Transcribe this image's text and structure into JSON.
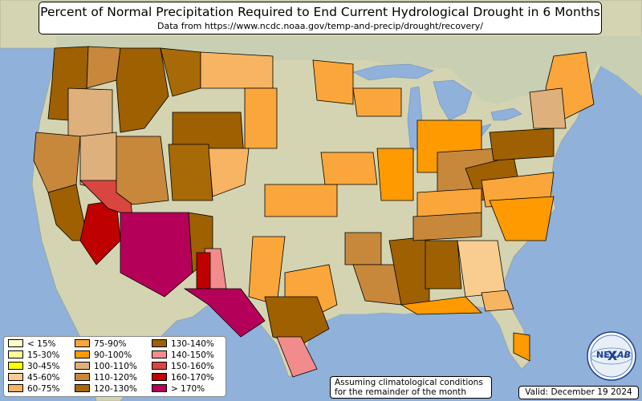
{
  "title": "Percent of Normal Precipitation Required to End Current Hydrological Drought in 6 Months",
  "subtitle": "Data from https://www.ncdc.noaa.gov/temp-and-precip/drought/recovery/",
  "colors": {
    "ocean": "#8fb1da",
    "land": "#d5d4b2",
    "lake": "#8fb1da",
    "lt15": "#ffffcc",
    "r15_30": "#ffff99",
    "r30_45": "#ffff00",
    "r45_60": "#f9cc8f",
    "r60_75": "#f7b462",
    "r75_90": "#fba63a",
    "r90_100": "#ff9a00",
    "r100_110": "#deb07c",
    "r110_120": "#c7883c",
    "r120_130": "#a86a06",
    "r130_140": "#9e6000",
    "r140_150": "#f28c8c",
    "r150_160": "#d9463f",
    "r160_170": "#bf0000",
    "gt170": "#b5005a"
  },
  "legend": {
    "items": [
      {
        "label": "< 15%",
        "color": "#ffffcc"
      },
      {
        "label": "15-30%",
        "color": "#ffff99"
      },
      {
        "label": "30-45%",
        "color": "#ffff00"
      },
      {
        "label": "45-60%",
        "color": "#f9cc8f"
      },
      {
        "label": "60-75%",
        "color": "#f7b462"
      },
      {
        "label": "75-90%",
        "color": "#fba63a"
      },
      {
        "label": "90-100%",
        "color": "#ff9a00"
      },
      {
        "label": "100-110%",
        "color": "#deb07c"
      },
      {
        "label": "110-120%",
        "color": "#c7883c"
      },
      {
        "label": "120-130%",
        "color": "#a86a06"
      },
      {
        "label": "130-140%",
        "color": "#9e6000"
      },
      {
        "label": "140-150%",
        "color": "#f28c8c"
      },
      {
        "label": "150-160%",
        "color": "#d9463f"
      },
      {
        "label": "160-170%",
        "color": "#bf0000"
      },
      {
        "label": "> 170%",
        "color": "#b5005a"
      }
    ]
  },
  "note": {
    "line1": "Assuming climatological conditions",
    "line2": "for the remainder of the month"
  },
  "valid": "Valid: December 19 2024",
  "logo": {
    "text_ne": "NE",
    "text_lab": "LAB"
  }
}
